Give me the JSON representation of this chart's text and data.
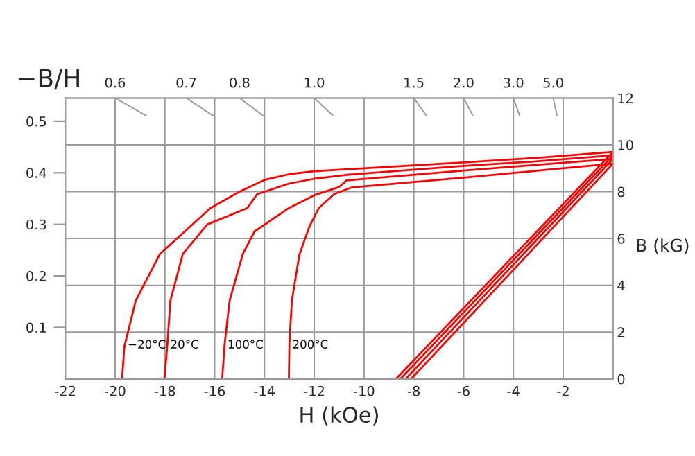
{
  "chart_data": {
    "type": "line",
    "xlabel": "H (kOe)",
    "ylabel": "B (kG)",
    "y2label": "−B/H",
    "xlim": [
      -22,
      0
    ],
    "xticks": [
      -22,
      -20,
      -18,
      -16,
      -14,
      -12,
      -10,
      -8,
      -6,
      -4,
      -2
    ],
    "ylim": [
      0,
      12
    ],
    "yticks": [
      0,
      2,
      4,
      6,
      8,
      10,
      12
    ],
    "y2lim": [
      0,
      0.545
    ],
    "y2ticks": [
      0.1,
      0.2,
      0.3,
      0.4,
      0.5
    ],
    "annotations": [
      {
        "text": "0.6",
        "x": -20,
        "y": 12
      },
      {
        "text": "0.7",
        "x": -17.14,
        "y": 12
      },
      {
        "text": "0.8",
        "x": -15,
        "y": 12
      },
      {
        "text": "1.0",
        "x": -12,
        "y": 12
      },
      {
        "text": "1.5",
        "x": -8,
        "y": 12
      },
      {
        "text": "2.0",
        "x": -6,
        "y": 12
      },
      {
        "text": "3.0",
        "x": -4,
        "y": 12
      },
      {
        "text": "5.0",
        "x": -2.4,
        "y": 12
      }
    ],
    "grid": true,
    "legend": false,
    "marker": "none",
    "line_style": "solid",
    "series": [
      {
        "name": "−20°C",
        "color": "#ff0000",
        "x": [
          -19.72,
          -19.63,
          -19.17,
          -18.2,
          -16.17,
          -15,
          -14,
          -13,
          -12,
          -10,
          -6,
          -3,
          0
        ],
        "values": [
          0,
          1.38,
          3.35,
          5.34,
          7.3,
          8.0,
          8.5,
          8.75,
          8.87,
          9.0,
          9.25,
          9.45,
          9.7
        ]
      },
      {
        "name": "20°C",
        "color": "#ff0000",
        "x": [
          -18.02,
          -17.9,
          -17.78,
          -17.28,
          -16.3,
          -14.69,
          -14.3,
          -13,
          -12,
          -10.7,
          -6,
          -3,
          0
        ],
        "values": [
          0,
          1.5,
          3.35,
          5.34,
          6.6,
          7.3,
          7.89,
          8.35,
          8.55,
          8.72,
          9.1,
          9.3,
          9.55
        ]
      },
      {
        "name": "100°C",
        "color": "#ff0000",
        "x": [
          -15.7,
          -15.6,
          -15.4,
          -14.87,
          -14.4,
          -13.02,
          -12,
          -11,
          -10.7,
          -6,
          -3,
          0
        ],
        "values": [
          0,
          1.5,
          3.35,
          5.34,
          6.3,
          7.3,
          7.85,
          8.2,
          8.48,
          8.9,
          9.15,
          9.4
        ]
      },
      {
        "name": "200°C",
        "color": "#ff0000",
        "x": [
          -13.02,
          -13.0,
          -12.9,
          -12.6,
          -12.2,
          -11.82,
          -11.2,
          -10.5,
          -6,
          -3,
          0
        ],
        "values": [
          0,
          1.5,
          3.35,
          5.3,
          6.5,
          7.3,
          7.9,
          8.18,
          8.6,
          8.9,
          9.2
        ]
      },
      {
        "color": "#ff0000",
        "x": [
          -8.72,
          0
        ],
        "values": [
          0,
          9.7
        ]
      },
      {
        "color": "#ff0000",
        "x": [
          -8.54,
          0
        ],
        "values": [
          0,
          9.55
        ]
      },
      {
        "color": "#ff0000",
        "x": [
          -8.33,
          0
        ],
        "values": [
          0,
          9.4
        ]
      },
      {
        "color": "#ff0000",
        "x": [
          -8.11,
          0
        ],
        "values": [
          0,
          9.2
        ]
      },
      {
        "color": "#999999",
        "x": [
          -20,
          -18.75
        ],
        "values": [
          12,
          11.25
        ]
      },
      {
        "color": "#999999",
        "x": [
          -17.14,
          -16.07
        ],
        "values": [
          12,
          11.25
        ]
      },
      {
        "color": "#999999",
        "x": [
          -15,
          -14.06
        ],
        "values": [
          12,
          11.25
        ]
      },
      {
        "color": "#999999",
        "x": [
          -12,
          -11.25
        ],
        "values": [
          12,
          11.25
        ]
      },
      {
        "color": "#999999",
        "x": [
          -8,
          -7.5
        ],
        "values": [
          12,
          11.25
        ]
      },
      {
        "color": "#999999",
        "x": [
          -6,
          -5.63
        ],
        "values": [
          12,
          11.25
        ]
      },
      {
        "color": "#999999",
        "x": [
          -4,
          -3.75
        ],
        "values": [
          12,
          11.25
        ]
      },
      {
        "color": "#999999",
        "x": [
          -2.4,
          -2.25
        ],
        "values": [
          12,
          11.25
        ]
      }
    ]
  }
}
